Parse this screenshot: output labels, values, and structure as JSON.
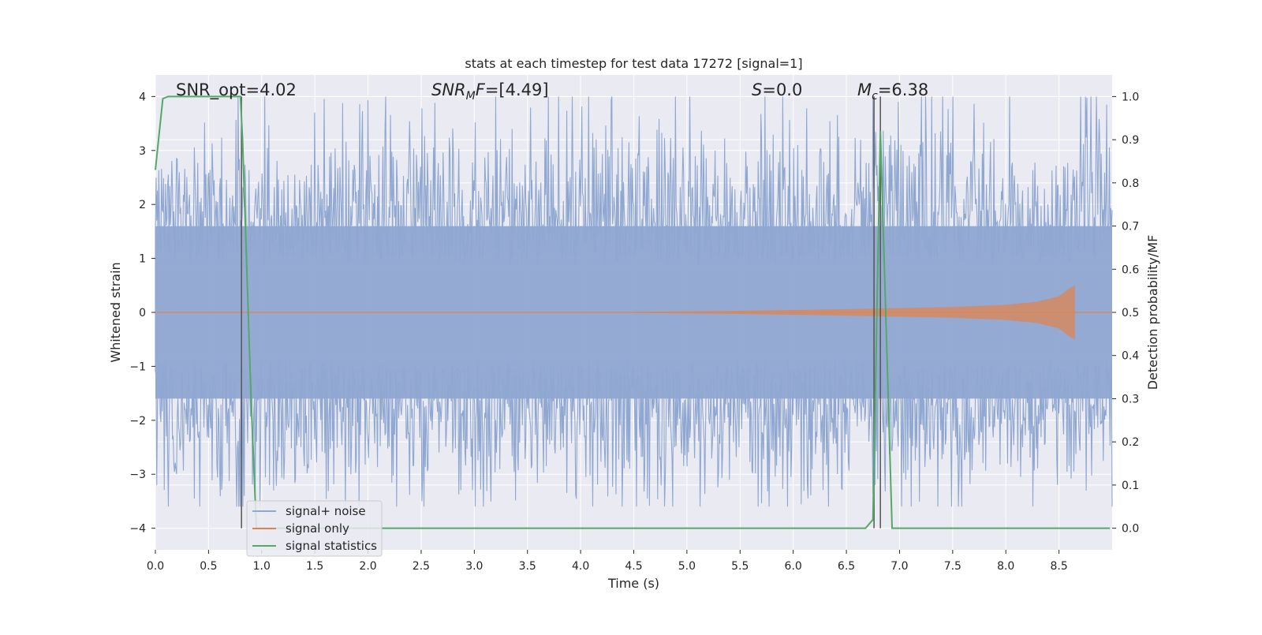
{
  "chart_data": {
    "type": "line",
    "title": "stats at each timestep for test data 17272 [signal=1]",
    "xlabel": "Time (s)",
    "ylabel": "Whitened strain",
    "ylabel_right": "Detection probability/MF",
    "xlim": [
      0.0,
      9.0
    ],
    "ylim": [
      -4.4,
      4.4
    ],
    "ylim_right": [
      -0.05,
      1.05
    ],
    "xticks": [
      0.0,
      0.5,
      1.0,
      1.5,
      2.0,
      2.5,
      3.0,
      3.5,
      4.0,
      4.5,
      5.0,
      5.5,
      6.0,
      6.5,
      7.0,
      7.5,
      8.0,
      8.5
    ],
    "xtick_labels": [
      "0.0",
      "0.5",
      "1.0",
      "1.5",
      "2.0",
      "2.5",
      "3.0",
      "3.5",
      "4.0",
      "4.5",
      "5.0",
      "5.5",
      "6.0",
      "6.5",
      "7.0",
      "7.5",
      "8.0",
      "8.5"
    ],
    "yticks": [
      -4,
      -3,
      -2,
      -1,
      0,
      1,
      2,
      3,
      4
    ],
    "ytick_labels": [
      "−4",
      "−3",
      "−2",
      "−1",
      "0",
      "1",
      "2",
      "3",
      "4"
    ],
    "yticks_right": [
      0.0,
      0.1,
      0.2,
      0.3,
      0.4,
      0.5,
      0.6,
      0.7,
      0.8,
      0.9,
      1.0
    ],
    "ytick_labels_right": [
      "0.0",
      "0.1",
      "0.2",
      "0.3",
      "0.4",
      "0.5",
      "0.6",
      "0.7",
      "0.8",
      "0.9",
      "1.0"
    ],
    "grid": true,
    "legend_position": "lower-left",
    "annotations": {
      "snr_opt": "SNR_opt=4.02",
      "snr_mf_prefix": "SNR",
      "snr_mf_sub": "M",
      "snr_mf_suffix": "F=[4.49]",
      "s_italic": "S",
      "s_value": "=0.0",
      "mc_italic": "M",
      "mc_sub": "c",
      "mc_value": "=6.38"
    },
    "series": [
      {
        "name": "signal+ noise",
        "color": "#8fa7d1",
        "kind": "noise_band",
        "description_values": {
          "x_start": 0.0,
          "x_end": 9.0,
          "core_amplitude": 1.6,
          "peak_max": 4.0,
          "peak_min": -3.6
        }
      },
      {
        "name": "signal only",
        "color": "#dd8452",
        "kind": "chirp_envelope",
        "envelope": {
          "x": [
            4.5,
            5.5,
            6.5,
            7.0,
            7.5,
            8.0,
            8.3,
            8.5,
            8.6,
            8.65
          ],
          "amplitude": [
            0.01,
            0.03,
            0.06,
            0.08,
            0.1,
            0.14,
            0.2,
            0.3,
            0.45,
            0.5
          ]
        }
      },
      {
        "name": "signal statistics",
        "color": "#55a868",
        "axis": "right",
        "x": [
          0.0,
          0.07,
          0.12,
          0.8,
          0.82,
          0.9,
          0.95,
          6.68,
          6.75,
          6.82,
          6.93,
          8.98
        ],
        "y": [
          0.83,
          0.995,
          1.0,
          1.0,
          0.9,
          0.3,
          0.0,
          0.0,
          0.02,
          0.92,
          0.0,
          0.0
        ]
      }
    ],
    "vertical_lines": [
      0.81,
      6.76,
      6.82
    ]
  },
  "colors": {
    "plot_background": "#eaeaf2",
    "grid": "#ffffff",
    "vline": "#555555"
  }
}
